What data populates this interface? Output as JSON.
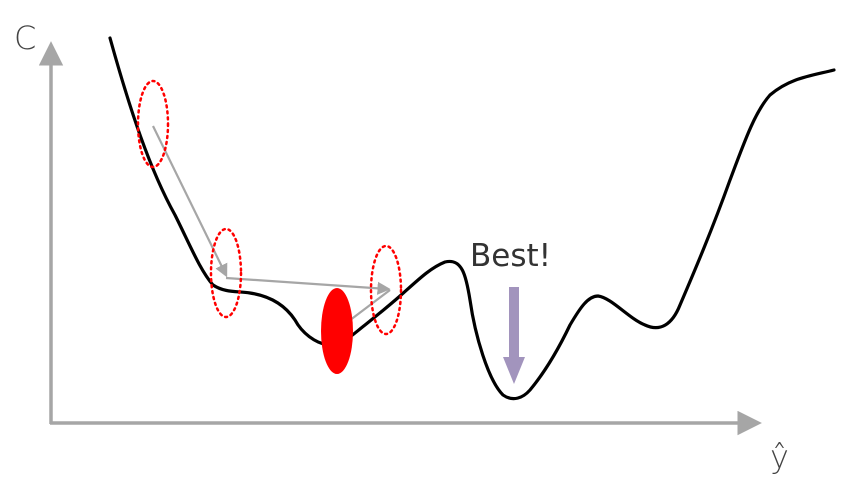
{
  "axes": {
    "y_label": "C",
    "x_label": "ŷ"
  },
  "annotation": {
    "text": "Best!"
  },
  "colors": {
    "axis": "#a6a6a6",
    "curve": "#000000",
    "step_arrow": "#a6a6a6",
    "highlight": "#ff0000",
    "best_arrow": "#a294bd"
  }
}
